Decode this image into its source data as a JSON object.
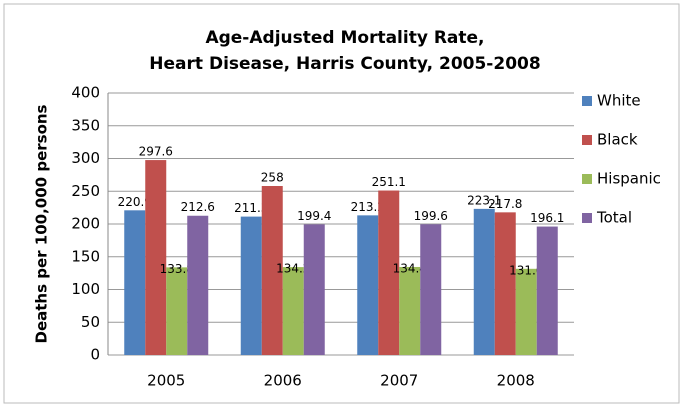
{
  "chart_data": {
    "type": "bar",
    "title": [
      "Age-Adjusted Mortality Rate,",
      "Heart Disease, Harris County, 2005-2008"
    ],
    "y_label": "Deaths per 100,000 persons",
    "categories": [
      "2005",
      "2006",
      "2007",
      "2008"
    ],
    "series": [
      {
        "name": "White",
        "color": "#4f81bd",
        "values": [
          220.9,
          211.3,
          213.2,
          223.1
        ]
      },
      {
        "name": "Black",
        "color": "#c0504d",
        "values": [
          297.6,
          258,
          251.1,
          217.8
        ]
      },
      {
        "name": "Hispanic",
        "color": "#9bbb59",
        "values": [
          133.8,
          134.2,
          134.4,
          131.6
        ]
      },
      {
        "name": "Total",
        "color": "#8064a2",
        "values": [
          212.6,
          199.4,
          199.6,
          196.1
        ]
      }
    ],
    "ylim": [
      0,
      400
    ],
    "yticks": [
      0,
      50,
      100,
      150,
      200,
      250,
      300,
      350,
      400
    ],
    "grid": true,
    "legend": "right"
  }
}
